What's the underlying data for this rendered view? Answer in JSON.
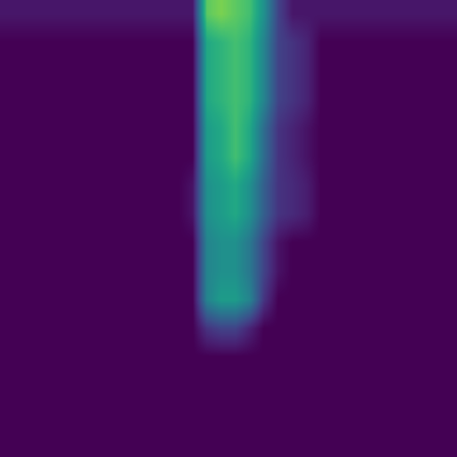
{
  "chart_data": {
    "type": "heatmap",
    "color": "viridis",
    "tick_labels": false,
    "grid": false,
    "color_range": [
      0,
      1
    ],
    "cells": [
      [
        0.06,
        0.06,
        0.06,
        0.06,
        0.06,
        0.06,
        0.06,
        0.06,
        0.06,
        0.06,
        0.06,
        0.06,
        0.06,
        0.06,
        0.75,
        0.8,
        0.75,
        0.7,
        0.5,
        0.2,
        0.06,
        0.06,
        0.06,
        0.06,
        0.06,
        0.06,
        0.06,
        0.06,
        0.06,
        0.06,
        0.06,
        0.06
      ],
      [
        0,
        0,
        0,
        0,
        0,
        0,
        0,
        0,
        0,
        0,
        0,
        0,
        0,
        0,
        0.6,
        0.65,
        0.7,
        0.65,
        0.45,
        0.2,
        0.15,
        0.1,
        0,
        0,
        0,
        0,
        0,
        0,
        0,
        0,
        0,
        0
      ],
      [
        0,
        0,
        0,
        0,
        0,
        0,
        0,
        0,
        0,
        0,
        0,
        0,
        0,
        0,
        0.6,
        0.65,
        0.7,
        0.65,
        0.45,
        0.2,
        0.15,
        0.1,
        0,
        0,
        0,
        0,
        0,
        0,
        0,
        0,
        0,
        0
      ],
      [
        0,
        0,
        0,
        0,
        0,
        0,
        0,
        0,
        0,
        0,
        0,
        0,
        0,
        0,
        0.6,
        0.65,
        0.7,
        0.65,
        0.45,
        0.2,
        0.15,
        0.1,
        0,
        0,
        0,
        0,
        0,
        0,
        0,
        0,
        0,
        0
      ],
      [
        0,
        0,
        0,
        0,
        0,
        0,
        0,
        0,
        0,
        0,
        0,
        0,
        0,
        0,
        0.55,
        0.6,
        0.7,
        0.6,
        0.35,
        0.15,
        0.1,
        0.05,
        0,
        0,
        0,
        0,
        0,
        0,
        0,
        0,
        0,
        0
      ],
      [
        0,
        0,
        0,
        0,
        0,
        0,
        0,
        0,
        0,
        0,
        0,
        0,
        0,
        0,
        0.55,
        0.6,
        0.7,
        0.6,
        0.35,
        0.15,
        0.1,
        0.05,
        0,
        0,
        0,
        0,
        0,
        0,
        0,
        0,
        0,
        0
      ],
      [
        0,
        0,
        0,
        0,
        0,
        0,
        0,
        0,
        0,
        0,
        0,
        0,
        0,
        0.05,
        0.5,
        0.55,
        0.6,
        0.5,
        0.3,
        0.15,
        0.12,
        0.08,
        0,
        0,
        0,
        0,
        0,
        0,
        0,
        0,
        0,
        0
      ],
      [
        0,
        0,
        0,
        0,
        0,
        0,
        0,
        0,
        0,
        0,
        0,
        0,
        0,
        0.05,
        0.5,
        0.55,
        0.6,
        0.5,
        0.3,
        0.15,
        0.12,
        0.08,
        0,
        0,
        0,
        0,
        0,
        0,
        0,
        0,
        0,
        0
      ],
      [
        0,
        0,
        0,
        0,
        0,
        0,
        0,
        0,
        0,
        0,
        0,
        0,
        0,
        0,
        0.45,
        0.5,
        0.5,
        0.4,
        0.2,
        0.05,
        0,
        0,
        0,
        0,
        0,
        0,
        0,
        0,
        0,
        0,
        0,
        0
      ],
      [
        0,
        0,
        0,
        0,
        0,
        0,
        0,
        0,
        0,
        0,
        0,
        0,
        0,
        0,
        0.45,
        0.5,
        0.5,
        0.4,
        0.2,
        0.05,
        0,
        0,
        0,
        0,
        0,
        0,
        0,
        0,
        0,
        0,
        0,
        0
      ],
      [
        0,
        0,
        0,
        0,
        0,
        0,
        0,
        0,
        0,
        0,
        0,
        0,
        0,
        0,
        0.45,
        0.55,
        0.55,
        0.45,
        0.15,
        0,
        0,
        0,
        0,
        0,
        0,
        0,
        0,
        0,
        0,
        0,
        0,
        0
      ],
      [
        0,
        0,
        0,
        0,
        0,
        0,
        0,
        0,
        0,
        0,
        0,
        0,
        0,
        0,
        0.15,
        0.2,
        0.2,
        0.1,
        0,
        0,
        0,
        0,
        0,
        0,
        0,
        0,
        0,
        0,
        0,
        0,
        0,
        0
      ],
      [
        0,
        0,
        0,
        0,
        0,
        0,
        0,
        0,
        0,
        0,
        0,
        0,
        0,
        0,
        0,
        0,
        0,
        0,
        0,
        0,
        0,
        0,
        0,
        0,
        0,
        0,
        0,
        0,
        0,
        0,
        0,
        0
      ],
      [
        0,
        0,
        0,
        0,
        0,
        0,
        0,
        0,
        0,
        0,
        0,
        0,
        0,
        0,
        0,
        0,
        0,
        0,
        0,
        0,
        0,
        0,
        0,
        0,
        0,
        0,
        0,
        0,
        0,
        0,
        0,
        0
      ],
      [
        0,
        0,
        0,
        0,
        0,
        0,
        0,
        0,
        0,
        0,
        0,
        0,
        0,
        0,
        0,
        0,
        0,
        0,
        0,
        0,
        0,
        0,
        0,
        0,
        0,
        0,
        0,
        0,
        0,
        0,
        0,
        0
      ],
      [
        0,
        0,
        0,
        0,
        0,
        0,
        0,
        0,
        0,
        0,
        0,
        0,
        0,
        0,
        0,
        0,
        0,
        0,
        0,
        0,
        0,
        0,
        0,
        0,
        0,
        0,
        0,
        0,
        0,
        0,
        0,
        0
      ]
    ]
  }
}
